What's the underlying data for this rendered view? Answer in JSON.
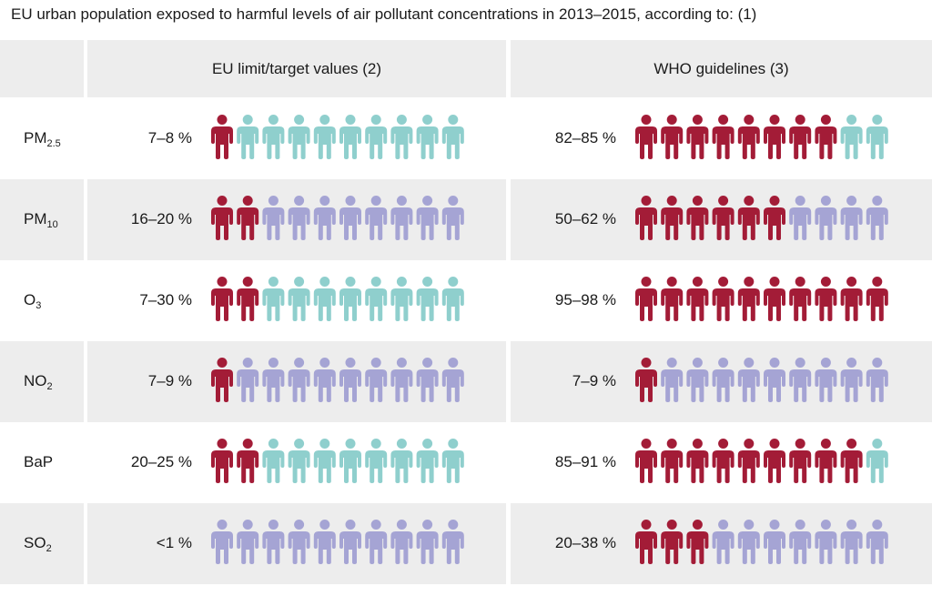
{
  "chart_data": {
    "type": "table",
    "title": "EU urban population exposed to harmful levels of air pollutant concentrations in 2013–2015, according to: (1)",
    "columns": [
      "EU limit/target values (2)",
      "WHO guidelines (3)"
    ],
    "rows": [
      {
        "label": "PM",
        "sub": "2.5",
        "eu": {
          "text": "7–8 %",
          "exposed": 1,
          "base": "teal"
        },
        "who": {
          "text": "82–85 %",
          "exposed": 8,
          "base": "teal"
        }
      },
      {
        "label": "PM",
        "sub": "10",
        "eu": {
          "text": "16–20 %",
          "exposed": 2,
          "base": "lavender"
        },
        "who": {
          "text": "50–62 %",
          "exposed": 6,
          "base": "lavender"
        }
      },
      {
        "label": "O",
        "sub": "3",
        "eu": {
          "text": "7–30 %",
          "exposed": 2,
          "base": "teal"
        },
        "who": {
          "text": "95–98 %",
          "exposed": 10,
          "base": "teal"
        }
      },
      {
        "label": "NO",
        "sub": "2",
        "eu": {
          "text": "7–9 %",
          "exposed": 1,
          "base": "lavender"
        },
        "who": {
          "text": "7–9 %",
          "exposed": 1,
          "base": "lavender"
        }
      },
      {
        "label": "BaP",
        "sub": "",
        "eu": {
          "text": "20–25 %",
          "exposed": 2,
          "base": "teal"
        },
        "who": {
          "text": "85–91 %",
          "exposed": 9,
          "base": "teal"
        }
      },
      {
        "label": "SO",
        "sub": "2",
        "eu": {
          "text": "<1 %",
          "exposed": 0,
          "base": "lavender"
        },
        "who": {
          "text": "20–38 %",
          "exposed": 3,
          "base": "lavender"
        }
      }
    ],
    "icons_per_row": 10
  },
  "colors": {
    "exposed": "#a31c37",
    "teal": "#8fcfcd",
    "lavender": "#a5a4d4",
    "row_grey": "#ededed"
  }
}
